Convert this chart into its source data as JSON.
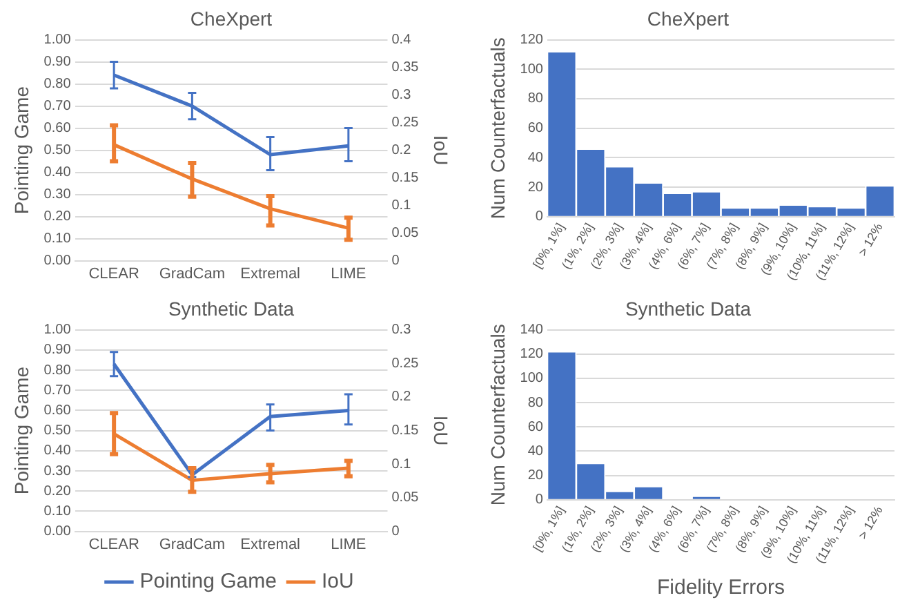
{
  "chart_data": [
    {
      "type": "line",
      "title": "CheXpert",
      "ylabel": "Pointing Game",
      "y2label": "IoU",
      "categories": [
        "CLEAR",
        "GradCam",
        "Extremal",
        "LIME"
      ],
      "series": [
        {
          "color": "#4472c4",
          "values": [
            0.84,
            0.7,
            0.48,
            0.52
          ],
          "errors": [
            [
              0.78,
              0.9
            ],
            [
              0.64,
              0.76
            ],
            [
              0.41,
              0.56
            ],
            [
              0.45,
              0.6
            ]
          ]
        },
        {
          "color": "#ed7d31",
          "axis": "y2",
          "values": [
            0.21,
            0.148,
            0.094,
            0.059
          ],
          "errors": [
            [
              0.18,
              0.245
            ],
            [
              0.116,
              0.177
            ],
            [
              0.064,
              0.117
            ],
            [
              0.038,
              0.078
            ]
          ]
        }
      ],
      "ylim": [
        0,
        1
      ],
      "yticks": [
        {
          "value": 0,
          "label": "0.00"
        },
        {
          "value": 0.1,
          "label": "0.10"
        },
        {
          "value": 0.2,
          "label": "0.20"
        },
        {
          "value": 0.3,
          "label": "0.30"
        },
        {
          "value": 0.4,
          "label": "0.40"
        },
        {
          "value": 0.5,
          "label": "0.50"
        },
        {
          "value": 0.6,
          "label": "0.60"
        },
        {
          "value": 0.7,
          "label": "0.70"
        },
        {
          "value": 0.8,
          "label": "0.80"
        },
        {
          "value": 0.9,
          "label": "0.90"
        },
        {
          "value": 1,
          "label": "1.00"
        }
      ],
      "y2lim": [
        0,
        0.4
      ],
      "y2ticks": [
        0,
        0.05,
        0.1,
        0.15,
        0.2,
        0.25,
        0.3,
        0.35,
        0.4
      ],
      "grid": "y",
      "marker": "none"
    },
    {
      "type": "bar",
      "title": "CheXpert",
      "ylabel": "Num Counterfactuals",
      "categories": [
        "[0%, 1%]",
        "(1%, 2%]",
        "(2%, 3%]",
        "(3%, 4%]",
        "(4%, 6%]",
        "(6%, 7%]",
        "(7%, 8%]",
        "(8%, 9%]",
        "(9%, 10%]",
        "(10%, 11%]",
        "(11%, 12%]",
        "> 12%"
      ],
      "values": [
        112,
        46,
        34,
        23,
        16,
        17,
        6,
        6,
        8,
        7,
        6,
        21
      ],
      "color": "#4472c4",
      "ylim": [
        0,
        120
      ],
      "yticks": [
        0,
        20,
        40,
        60,
        80,
        100,
        120
      ],
      "grid": "y"
    },
    {
      "type": "line",
      "title": "Synthetic Data",
      "ylabel": "Pointing Game",
      "y2label": "IoU",
      "categories": [
        "CLEAR",
        "GradCam",
        "Extremal",
        "LIME"
      ],
      "series": [
        {
          "name": "Pointing Game",
          "color": "#4472c4",
          "values": [
            0.83,
            0.28,
            0.57,
            0.6
          ],
          "errors": [
            [
              0.77,
              0.89
            ],
            [
              0.27,
              0.31
            ],
            [
              0.5,
              0.63
            ],
            [
              0.53,
              0.68
            ]
          ]
        },
        {
          "name": "IoU",
          "color": "#ed7d31",
          "axis": "y2",
          "values": [
            0.145,
            0.076,
            0.086,
            0.094
          ],
          "errors": [
            [
              0.115,
              0.176
            ],
            [
              0.059,
              0.094
            ],
            [
              0.073,
              0.099
            ],
            [
              0.082,
              0.105
            ]
          ]
        }
      ],
      "ylim": [
        0,
        1
      ],
      "yticks": [
        {
          "value": 0,
          "label": "0.00"
        },
        {
          "value": 0.1,
          "label": "0.10"
        },
        {
          "value": 0.2,
          "label": "0.20"
        },
        {
          "value": 0.3,
          "label": "0.30"
        },
        {
          "value": 0.4,
          "label": "0.40"
        },
        {
          "value": 0.5,
          "label": "0.50"
        },
        {
          "value": 0.6,
          "label": "0.60"
        },
        {
          "value": 0.7,
          "label": "0.70"
        },
        {
          "value": 0.8,
          "label": "0.80"
        },
        {
          "value": 0.9,
          "label": "0.90"
        },
        {
          "value": 1,
          "label": "1.00"
        }
      ],
      "y2lim": [
        0,
        0.3
      ],
      "y2ticks": [
        0,
        0.05,
        0.1,
        0.15,
        0.2,
        0.25,
        0.3
      ],
      "grid": "y",
      "marker": "none",
      "legend": "bottom"
    },
    {
      "type": "bar",
      "title": "Synthetic Data",
      "ylabel": "Num Counterfactuals",
      "xlabel": "Fidelity Errors",
      "categories": [
        "[0%, 1%]",
        "(1%, 2%]",
        "(2%, 3%]",
        "(3%, 4%]",
        "(4%, 6%]",
        "(6%, 7%]",
        "(7%, 8%]",
        "(8%, 9%]",
        "(9%, 10%]",
        "(10%, 11%]",
        "(11%, 12%]",
        "> 12%"
      ],
      "values": [
        122,
        30,
        7,
        11,
        0,
        3,
        0,
        0,
        0,
        0,
        0,
        0
      ],
      "color": "#4472c4",
      "ylim": [
        0,
        140
      ],
      "yticks": [
        0,
        20,
        40,
        60,
        80,
        100,
        120,
        140
      ],
      "grid": "y"
    }
  ]
}
